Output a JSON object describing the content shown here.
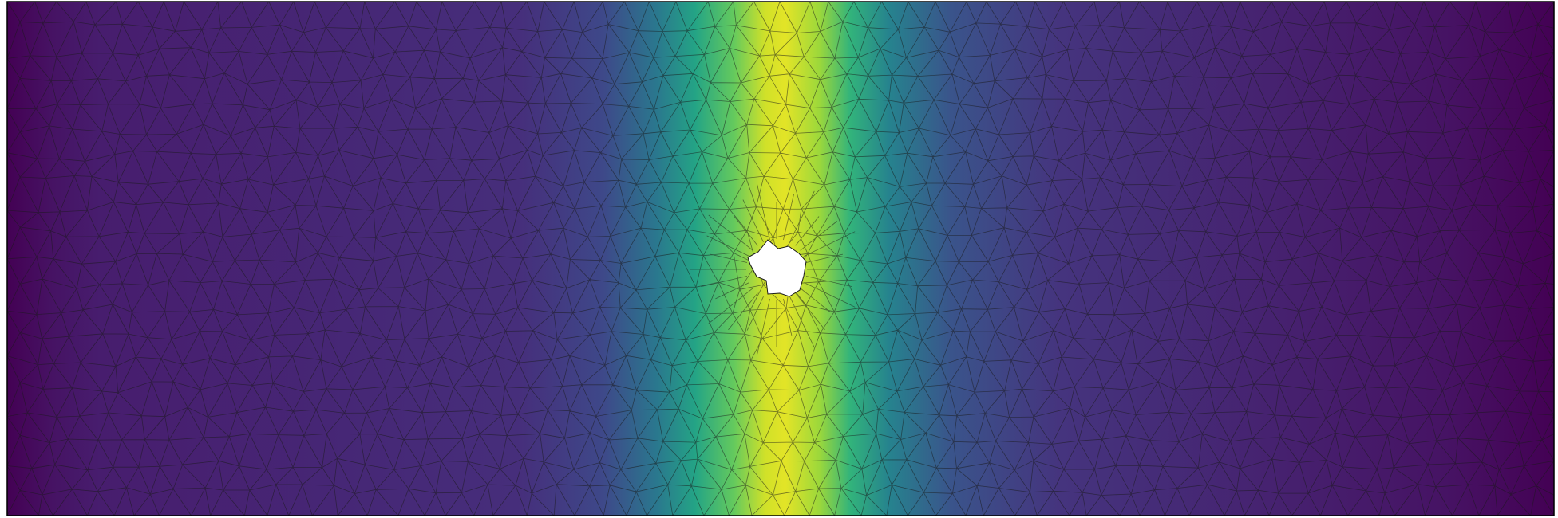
{
  "figure": {
    "kind": "finite-element mesh contour plot",
    "colormap": "viridis",
    "field_profile": [
      {
        "x": 0.0,
        "v": 0.0
      },
      {
        "x": 0.03,
        "v": 0.05
      },
      {
        "x": 0.06,
        "v": 0.08
      },
      {
        "x": 0.33,
        "v": 0.13
      },
      {
        "x": 0.385,
        "v": 0.22
      },
      {
        "x": 0.42,
        "v": 0.4
      },
      {
        "x": 0.445,
        "v": 0.58
      },
      {
        "x": 0.47,
        "v": 0.76
      },
      {
        "x": 0.49,
        "v": 0.93
      },
      {
        "x": 0.503,
        "v": 0.96
      },
      {
        "x": 0.525,
        "v": 0.85
      },
      {
        "x": 0.545,
        "v": 0.65
      },
      {
        "x": 0.57,
        "v": 0.45
      },
      {
        "x": 0.61,
        "v": 0.26
      },
      {
        "x": 0.68,
        "v": 0.15
      },
      {
        "x": 0.93,
        "v": 0.05
      },
      {
        "x": 1.0,
        "v": 0.0
      }
    ],
    "colors": {
      "background": "#ffffff",
      "mesh_edges": "#1a1a1a",
      "frame": "#000000",
      "hole": "#ffffff",
      "viridis_stops": [
        "#440154",
        "#482878",
        "#3e4989",
        "#31688e",
        "#26828e",
        "#1f9e89",
        "#35b779",
        "#6ece58",
        "#b5de2b",
        "#fde725"
      ]
    },
    "has_hole": true,
    "legend": false,
    "axes": false
  }
}
